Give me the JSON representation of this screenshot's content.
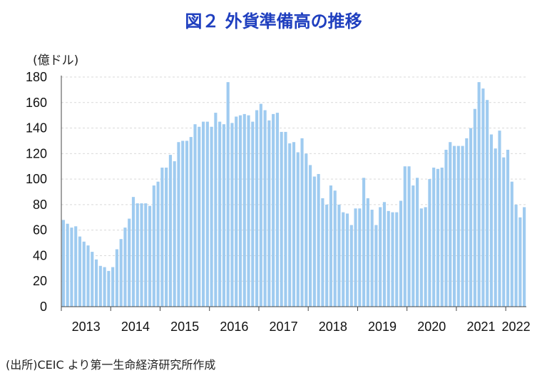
{
  "chart_data": {
    "type": "bar",
    "title": "図２ 外貨準備高の推移",
    "ylabel": "(億ドル)",
    "source": "(出所)CEIC より第一生命経済研究所作成",
    "ylim": [
      0,
      180
    ],
    "yticks": [
      0,
      20,
      40,
      60,
      80,
      100,
      120,
      140,
      160,
      180
    ],
    "xticks": [
      "2013",
      "2014",
      "2015",
      "2016",
      "2017",
      "2018",
      "2019",
      "2020",
      "2021",
      "2022"
    ],
    "grid": true,
    "bar_color": "#9fcbf0",
    "values": [
      68,
      65,
      62,
      63,
      55,
      51,
      48,
      43,
      37,
      32,
      31,
      28,
      31,
      45,
      53,
      62,
      69,
      86,
      81,
      81,
      81,
      79,
      95,
      98,
      109,
      109,
      119,
      114,
      129,
      130,
      130,
      133,
      143,
      141,
      145,
      145,
      141,
      152,
      145,
      143,
      176,
      144,
      149,
      150,
      151,
      150,
      145,
      154,
      159,
      154,
      146,
      151,
      152,
      137,
      137,
      128,
      129,
      121,
      132,
      120,
      111,
      102,
      104,
      85,
      80,
      95,
      91,
      80,
      74,
      73,
      64,
      77,
      77,
      101,
      85,
      76,
      64,
      78,
      82,
      75,
      74,
      74,
      83,
      110,
      110,
      95,
      101,
      77,
      78,
      100,
      109,
      108,
      109,
      123,
      129,
      126,
      126,
      126,
      132,
      140,
      155,
      176,
      171,
      162,
      135,
      124,
      138,
      117,
      123,
      98,
      80,
      70,
      78
    ]
  }
}
